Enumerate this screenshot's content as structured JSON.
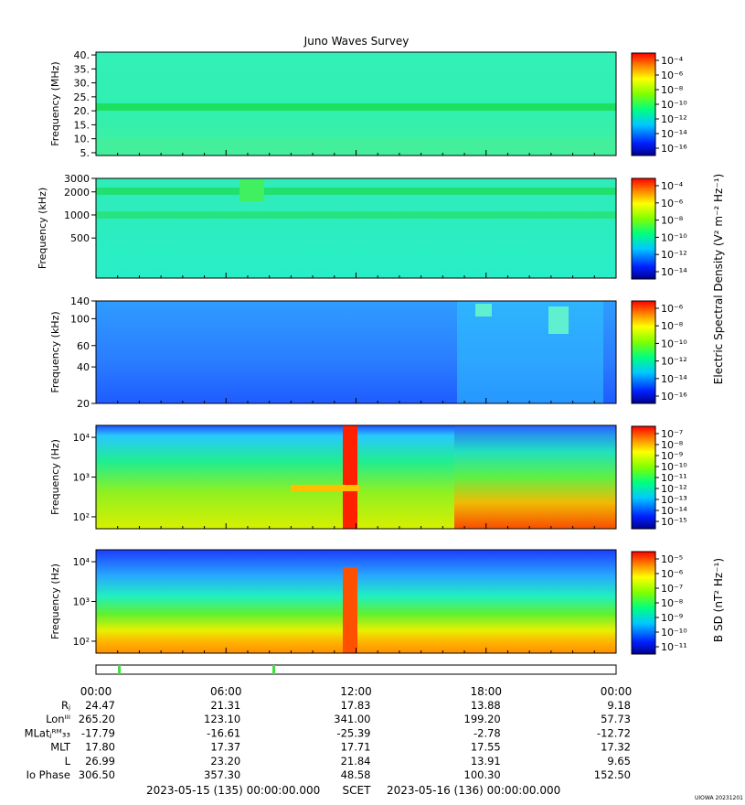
{
  "title": "Juno Waves Survey",
  "footer": {
    "start": "2023-05-15 (135) 00:00:00.000",
    "scet": "SCET",
    "end": "2023-05-16 (136) 00:00:00.000",
    "credit": "UIOWA 20231201"
  },
  "colorbars": {
    "electric_label": "Electric Spectral Density (V² m⁻² Hz⁻¹)",
    "magnetic_label": "B SD (nT² Hz⁻¹)"
  },
  "ephemeris": {
    "rows": [
      {
        "label": "Rⱼ",
        "values": [
          "24.47",
          "21.31",
          "17.83",
          "13.88",
          "9.18"
        ]
      },
      {
        "label": "Lonᴵᴵᴵ",
        "values": [
          "265.20",
          "123.10",
          "341.00",
          "199.20",
          "57.73"
        ]
      },
      {
        "label": "MLatⱼᴿᴹ₃₃",
        "values": [
          "-17.79",
          "-16.61",
          "-25.39",
          "-2.78",
          "-12.72"
        ]
      },
      {
        "label": "MLT",
        "values": [
          "17.80",
          "17.37",
          "17.71",
          "17.55",
          "17.32"
        ]
      },
      {
        "label": "L",
        "values": [
          "26.99",
          "23.20",
          "21.84",
          "13.91",
          "9.65"
        ]
      },
      {
        "label": "Io Phase",
        "values": [
          "306.50",
          "357.30",
          "48.58",
          "100.30",
          "152.50"
        ]
      }
    ]
  },
  "chart_data": [
    {
      "type": "heatmap",
      "title": "Juno Waves Survey",
      "ylabel": "Frequency (MHz)",
      "y_scale": "linear",
      "ylim": [
        4,
        41
      ],
      "yticks": [
        "40.",
        "35.",
        "30.",
        "25.",
        "20.",
        "15.",
        "10.",
        "5."
      ],
      "xticks": [
        "00:00",
        "06:00",
        "12:00",
        "18:00",
        "00:00"
      ],
      "colorbar": {
        "ticks": [
          "10⁻⁴",
          "10⁻⁶",
          "10⁻⁸",
          "10⁻¹⁰",
          "10⁻¹²",
          "10⁻¹⁴",
          "10⁻¹⁶"
        ]
      }
    },
    {
      "type": "heatmap",
      "ylabel": "Frequency (kHz)",
      "y_scale": "log",
      "ylim": [
        150,
        3000
      ],
      "yticks": [
        "3000",
        "2000",
        "1000",
        "500"
      ],
      "xticks": [
        "00:00",
        "06:00",
        "12:00",
        "18:00",
        "00:00"
      ],
      "colorbar": {
        "ticks": [
          "10⁻⁴",
          "10⁻⁶",
          "10⁻⁸",
          "10⁻¹⁰",
          "10⁻¹²",
          "10⁻¹⁴"
        ]
      }
    },
    {
      "type": "heatmap",
      "ylabel": "Frequency (kHz)",
      "y_scale": "log",
      "ylim": [
        20,
        140
      ],
      "yticks": [
        "140",
        "100",
        "60",
        "40",
        "20"
      ],
      "xticks": [
        "00:00",
        "06:00",
        "12:00",
        "18:00",
        "00:00"
      ],
      "colorbar": {
        "ticks": [
          "10⁻⁶",
          "10⁻⁸",
          "10⁻¹⁰",
          "10⁻¹²",
          "10⁻¹⁴",
          "10⁻¹⁶"
        ]
      }
    },
    {
      "type": "heatmap",
      "ylabel": "Frequency (Hz)",
      "y_scale": "log",
      "ylim": [
        50,
        20000
      ],
      "yticks": [
        "10⁴",
        "10³",
        "10²"
      ],
      "xticks": [
        "00:00",
        "06:00",
        "12:00",
        "18:00",
        "00:00"
      ],
      "colorbar": {
        "ticks": [
          "10⁻⁷",
          "10⁻⁸",
          "10⁻⁹",
          "10⁻¹⁰",
          "10⁻¹¹",
          "10⁻¹²",
          "10⁻¹³",
          "10⁻¹⁴",
          "10⁻¹⁵"
        ]
      }
    },
    {
      "type": "heatmap",
      "ylabel": "Frequency (Hz)",
      "y_scale": "log",
      "ylim": [
        50,
        20000
      ],
      "yticks": [
        "10⁴",
        "10³",
        "10²"
      ],
      "xticks": [
        "00:00",
        "06:00",
        "12:00",
        "18:00",
        "00:00"
      ],
      "colorbar": {
        "ticks": [
          "10⁻⁵",
          "10⁻⁶",
          "10⁻⁷",
          "10⁻⁸",
          "10⁻⁹",
          "10⁻¹⁰",
          "10⁻¹¹"
        ]
      }
    }
  ]
}
